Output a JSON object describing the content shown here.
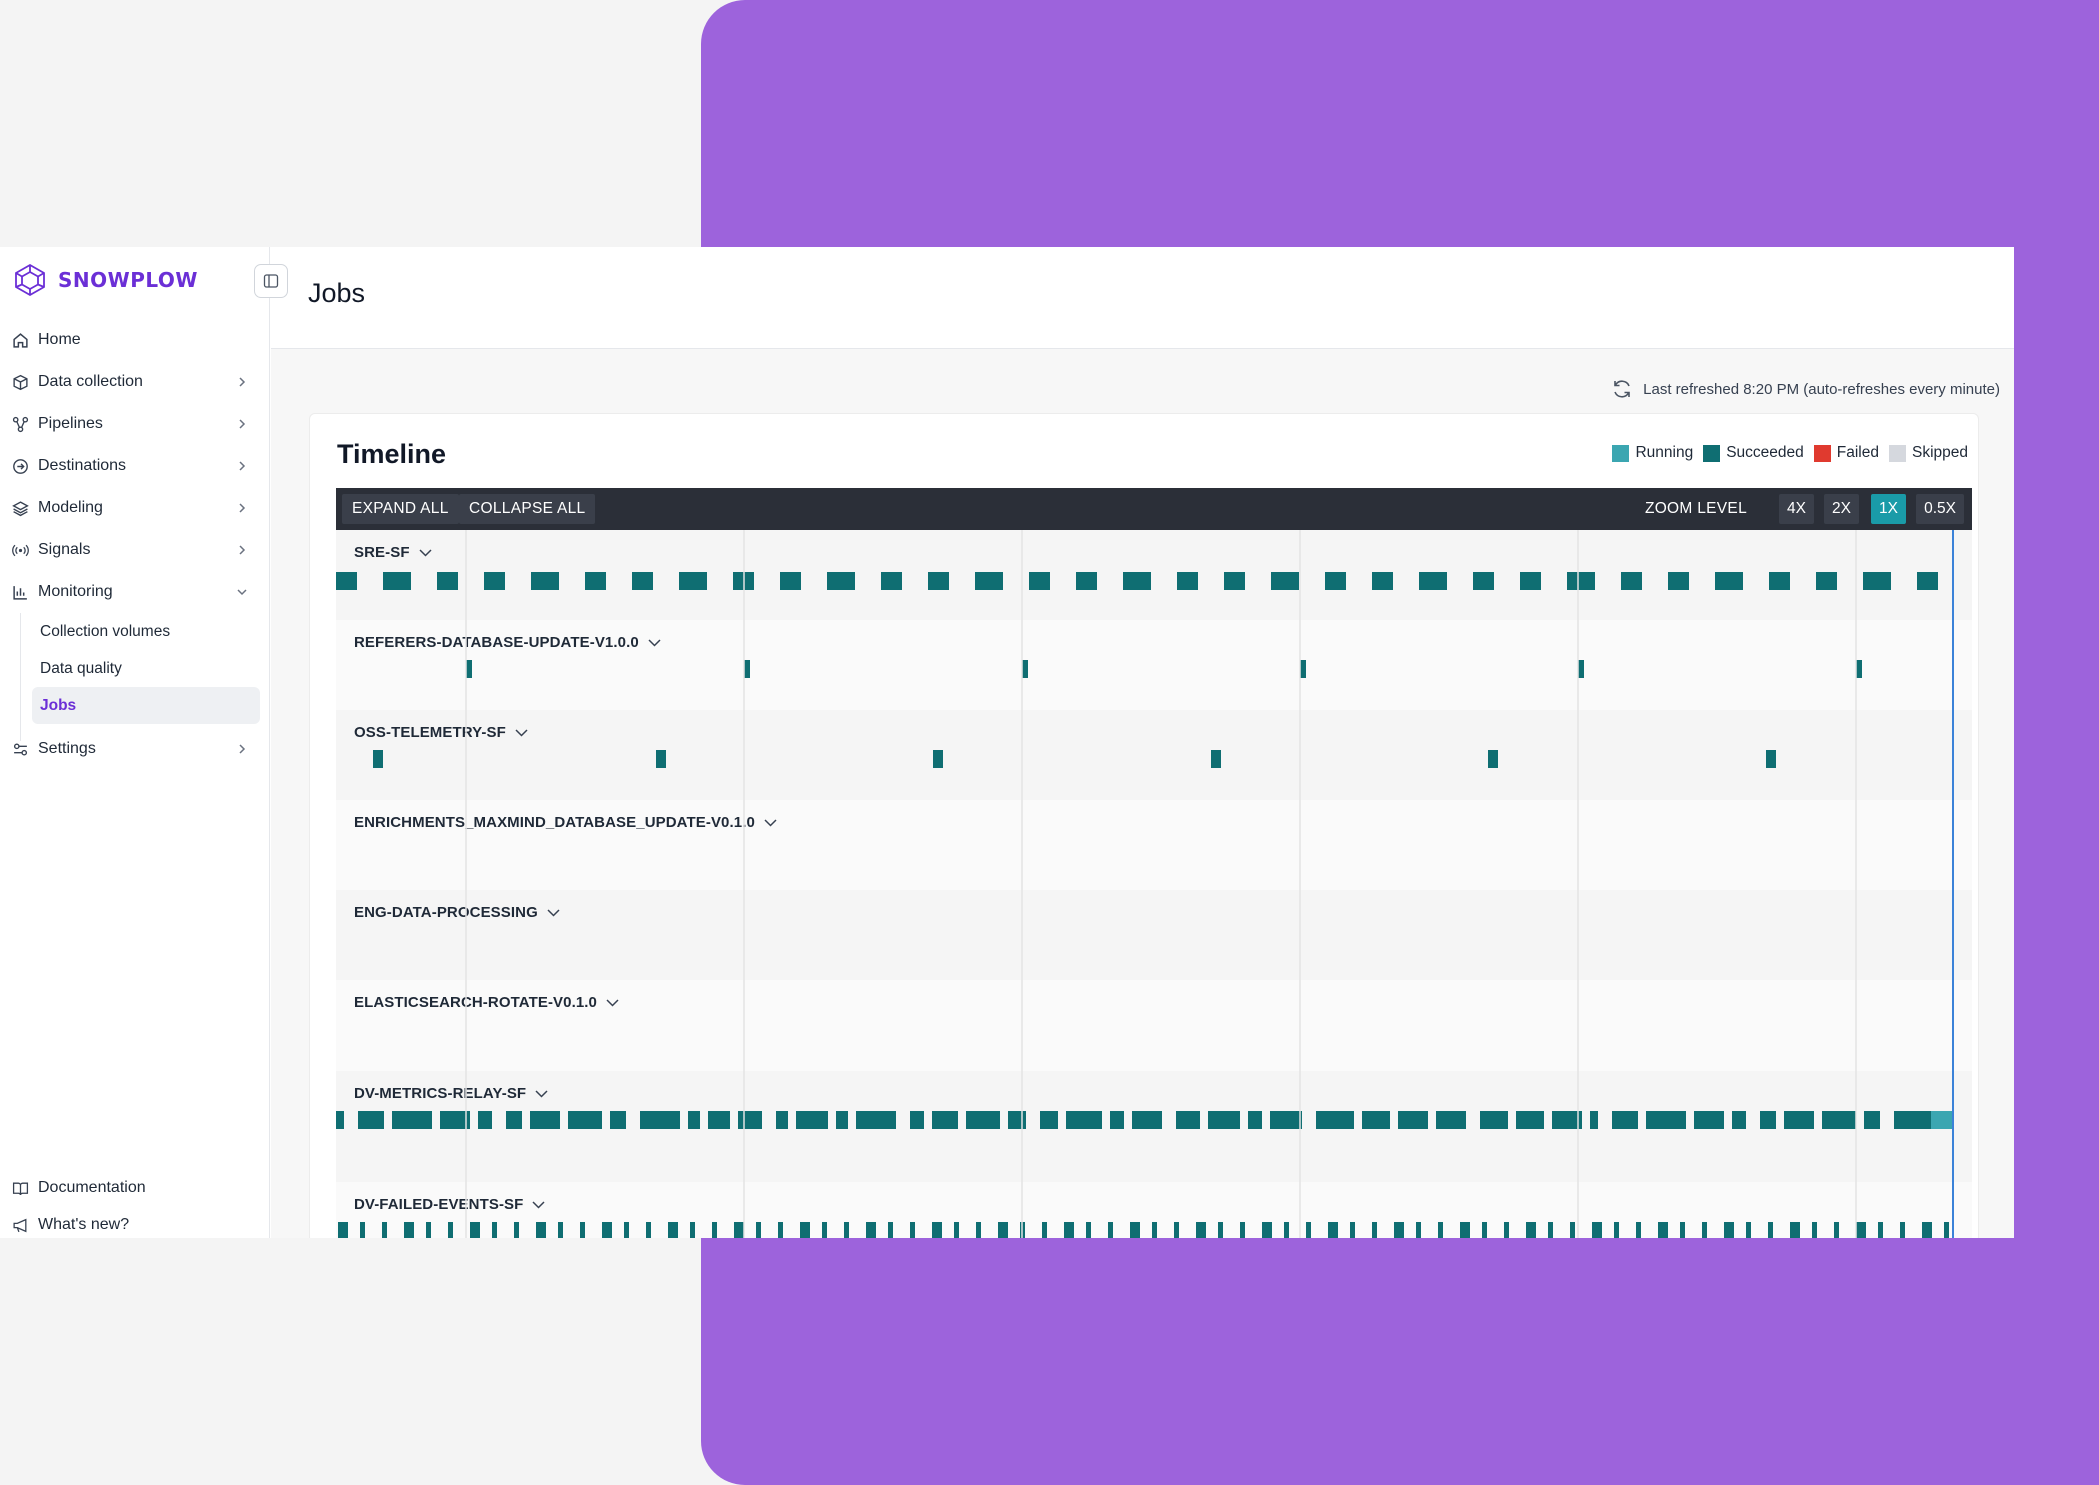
{
  "brand": {
    "name": "SNOWPLOW"
  },
  "sidebar": {
    "items": [
      {
        "label": "Home",
        "icon": "home-icon",
        "has_chevron": false
      },
      {
        "label": "Data collection",
        "icon": "cube-icon",
        "has_chevron": true
      },
      {
        "label": "Pipelines",
        "icon": "pipeline-icon",
        "has_chevron": true
      },
      {
        "label": "Destinations",
        "icon": "destination-icon",
        "has_chevron": true
      },
      {
        "label": "Modeling",
        "icon": "layers-icon",
        "has_chevron": true
      },
      {
        "label": "Signals",
        "icon": "signal-icon",
        "has_chevron": true
      },
      {
        "label": "Monitoring",
        "icon": "bar-chart-icon",
        "has_chevron": true,
        "expanded": true
      }
    ],
    "monitoring_sub": [
      "Collection volumes",
      "Data quality",
      "Jobs"
    ],
    "active_sub": "Jobs",
    "settings": {
      "label": "Settings",
      "icon": "settings-icon"
    },
    "bottom": [
      {
        "label": "Documentation",
        "icon": "book-icon"
      },
      {
        "label": "What's new?",
        "icon": "megaphone-icon"
      }
    ]
  },
  "page": {
    "title": "Jobs",
    "refresh_text": "Last refreshed 8:20 PM (auto-refreshes every minute)"
  },
  "timeline": {
    "title": "Timeline",
    "legend": [
      {
        "label": "Running",
        "color": "#3ba6b1"
      },
      {
        "label": "Succeeded",
        "color": "#0f6e72"
      },
      {
        "label": "Failed",
        "color": "#e03a2f"
      },
      {
        "label": "Skipped",
        "color": "#d5d8de"
      }
    ],
    "expand_all": "EXPAND ALL",
    "collapse_all": "COLLAPSE ALL",
    "zoom_label": "ZOOM LEVEL",
    "zoom_options": [
      "4X",
      "2X",
      "1X",
      "0.5X"
    ],
    "zoom_selected": "1X",
    "jobs": [
      {
        "name": "SRE-SF",
        "pattern": "regular-medium"
      },
      {
        "name": "REFERERS-DATABASE-UPDATE-V1.0.0",
        "pattern": "sparse-thin"
      },
      {
        "name": "OSS-TELEMETRY-SF",
        "pattern": "sparse-small"
      },
      {
        "name": "ENRICHMENTS_MAXMIND_DATABASE_UPDATE-V0.1.0",
        "pattern": "none"
      },
      {
        "name": "ENG-DATA-PROCESSING",
        "pattern": "none"
      },
      {
        "name": "ELASTICSEARCH-ROTATE-V0.1.0",
        "pattern": "none"
      },
      {
        "name": "DV-METRICS-RELAY-SF",
        "pattern": "dense-wide"
      },
      {
        "name": "DV-FAILED-EVENTS-SF",
        "pattern": "dense-thin"
      }
    ]
  }
}
